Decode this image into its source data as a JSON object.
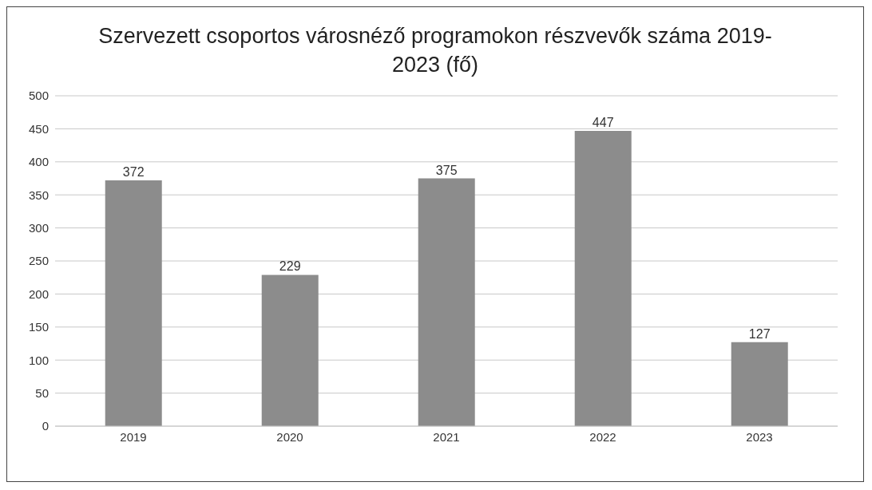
{
  "chart_data": {
    "type": "bar",
    "title": "Szervezett csoportos városnéző programokon részvevők száma 2019-2023 (fő)",
    "categories": [
      "2019",
      "2020",
      "2021",
      "2022",
      "2023"
    ],
    "values": [
      372,
      229,
      375,
      447,
      127
    ],
    "color": "#8c8c8c",
    "ylim": [
      0,
      500
    ],
    "yticks": [
      0,
      50,
      100,
      150,
      200,
      250,
      300,
      350,
      400,
      450,
      500
    ],
    "grid": "y",
    "data_labels": true
  }
}
